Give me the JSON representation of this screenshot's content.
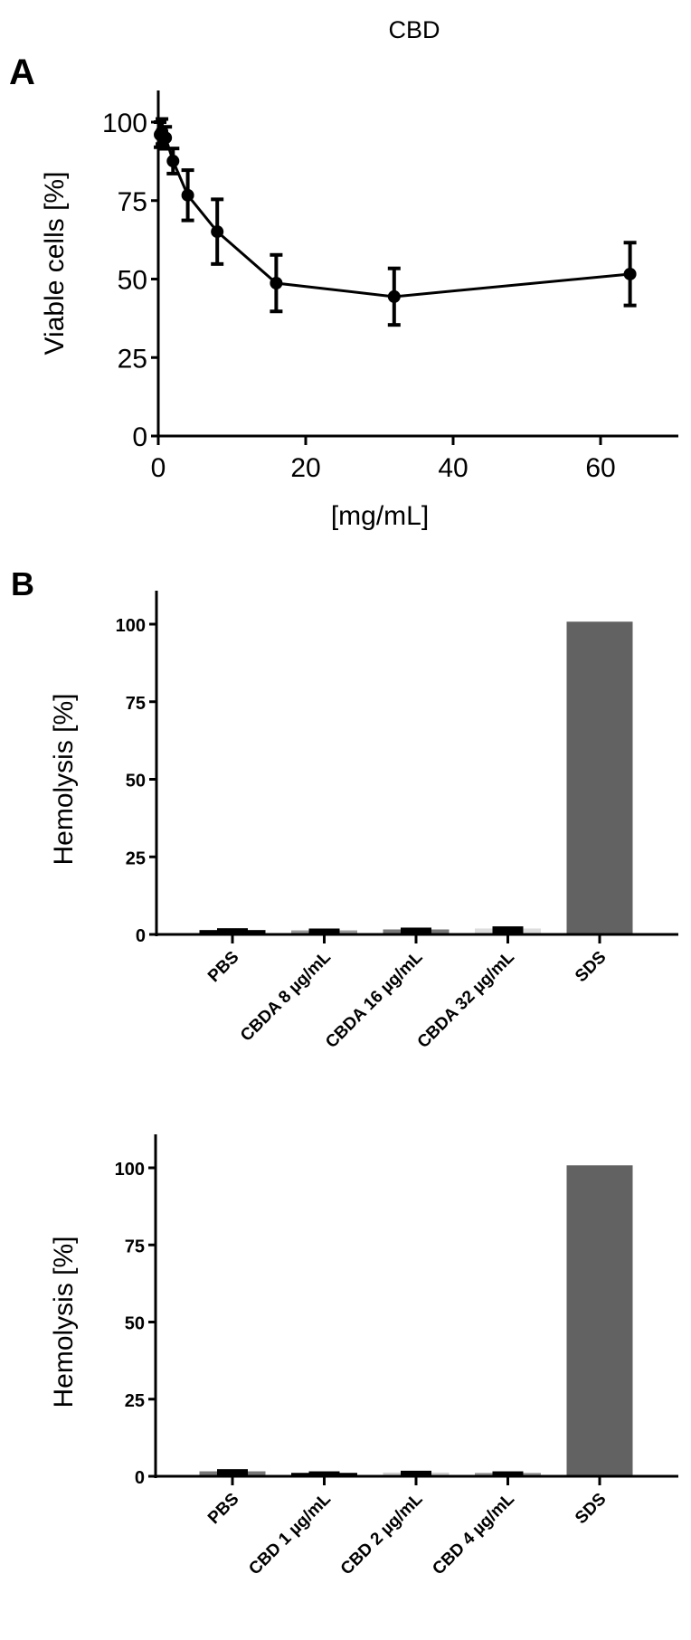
{
  "figure": {
    "title": "CBD",
    "panel_a_letter": "A",
    "panel_b_letter": "B"
  },
  "chart_data": [
    {
      "id": "panel-a",
      "type": "line",
      "title": "CBD",
      "xlabel": "[mg/mL]",
      "ylabel": "Viable cells  [%]",
      "xlim": [
        0,
        70
      ],
      "ylim": [
        0,
        110
      ],
      "xticks": [
        0,
        20,
        40,
        60
      ],
      "yticks": [
        0,
        25,
        50,
        75,
        100
      ],
      "grid": false,
      "legend": null,
      "series": [
        {
          "name": "CBD",
          "color": "#000000",
          "x": [
            0.25,
            0.5,
            1,
            2,
            4,
            8,
            16,
            32,
            64
          ],
          "y": [
            96,
            97,
            95,
            87.6,
            76.7,
            65.1,
            48.7,
            44.4,
            51.6
          ],
          "err": [
            4,
            4,
            3.5,
            4,
            8,
            10.3,
            9,
            9,
            10
          ]
        }
      ]
    },
    {
      "id": "panel-b-top",
      "type": "bar",
      "title": "",
      "xlabel": "",
      "ylabel": "Hemolysis [%]",
      "ylim": [
        0,
        110
      ],
      "yticks": [
        0,
        25,
        50,
        75,
        100
      ],
      "grid": false,
      "legend": null,
      "categories": [
        "PBS",
        "CBDA 8 µg/mL",
        "CBDA 16 µg/mL",
        "CBDA 32 µg/mL",
        "SDS"
      ],
      "values": [
        1.7,
        1.6,
        1.9,
        2.2,
        100.8
      ],
      "err": [
        0.3,
        0.3,
        0.3,
        0.4,
        0
      ],
      "colors": [
        "#000000",
        "#9a9a9a",
        "#777777",
        "#dddddd",
        "#626262"
      ]
    },
    {
      "id": "panel-b-bottom",
      "type": "bar",
      "title": "",
      "xlabel": "",
      "ylabel": "Hemolysis [%]",
      "ylim": [
        0,
        110
      ],
      "yticks": [
        0,
        25,
        50,
        75,
        100
      ],
      "grid": false,
      "legend": null,
      "categories": [
        "PBS",
        "CBD 1 µg/mL",
        "CBD 2 µg/mL",
        "CBD 4 µg/mL",
        "SDS"
      ],
      "values": [
        1.9,
        1.4,
        1.5,
        1.4,
        100.8
      ],
      "err": [
        0.4,
        0.2,
        0.3,
        0.2,
        0
      ],
      "colors": [
        "#777777",
        "#000000",
        "#cfcfcf",
        "#999999",
        "#626262"
      ]
    }
  ]
}
